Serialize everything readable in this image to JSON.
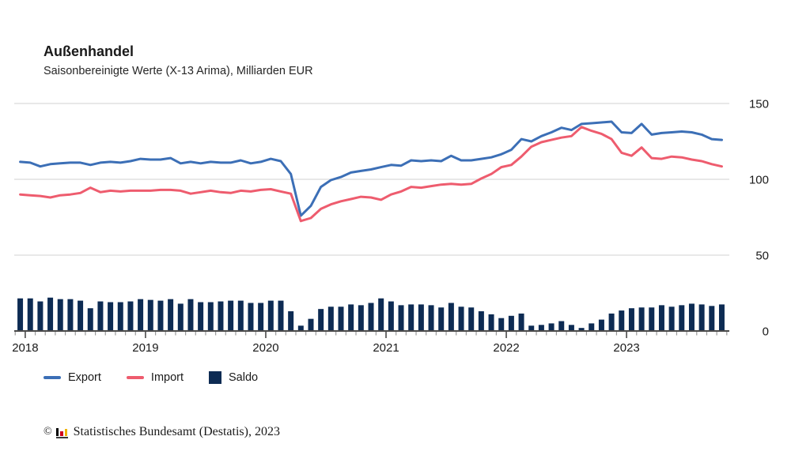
{
  "title": "Außenhandel",
  "subtitle": "Saisonbereinigte Werte (X-13 Arima), Milliarden EUR",
  "footer": {
    "copyright": "©",
    "source": "Statistisches Bundesamt (Destatis), 2023"
  },
  "colors": {
    "export": "#3c6fb6",
    "import": "#ee5c6e",
    "saldo": "#0d2b53",
    "grid": "#d9d9d9",
    "axis": "#4a4a4a",
    "tick_minor": "#9a9a9a",
    "text": "#1a1a1a"
  },
  "legend": [
    {
      "label": "Export",
      "type": "line"
    },
    {
      "label": "Import",
      "type": "line"
    },
    {
      "label": "Saldo",
      "type": "bar"
    }
  ],
  "chart_data": {
    "type": "line+bar",
    "title": "Außenhandel",
    "subtitle": "Saisonbereinigte Werte (X-13 Arima), Milliarden EUR",
    "unit": "Milliarden EUR",
    "x_unit": "month",
    "months": [
      "2017-12",
      "2018-01",
      "2018-02",
      "2018-03",
      "2018-04",
      "2018-05",
      "2018-06",
      "2018-07",
      "2018-08",
      "2018-09",
      "2018-10",
      "2018-11",
      "2018-12",
      "2019-01",
      "2019-02",
      "2019-03",
      "2019-04",
      "2019-05",
      "2019-06",
      "2019-07",
      "2019-08",
      "2019-09",
      "2019-10",
      "2019-11",
      "2019-12",
      "2020-01",
      "2020-02",
      "2020-03",
      "2020-04",
      "2020-05",
      "2020-06",
      "2020-07",
      "2020-08",
      "2020-09",
      "2020-10",
      "2020-11",
      "2020-12",
      "2021-01",
      "2021-02",
      "2021-03",
      "2021-04",
      "2021-05",
      "2021-06",
      "2021-07",
      "2021-08",
      "2021-09",
      "2021-10",
      "2021-11",
      "2021-12",
      "2022-01",
      "2022-02",
      "2022-03",
      "2022-04",
      "2022-05",
      "2022-06",
      "2022-07",
      "2022-08",
      "2022-09",
      "2022-10",
      "2022-11",
      "2022-12",
      "2023-01",
      "2023-02",
      "2023-03",
      "2023-04",
      "2023-05",
      "2023-06",
      "2023-07",
      "2023-08",
      "2023-09",
      "2023-10"
    ],
    "series": [
      {
        "name": "Export",
        "type": "line",
        "values": [
          111.5,
          111,
          108.5,
          110,
          110.5,
          111,
          111,
          109.5,
          111,
          111.5,
          111,
          112,
          113.5,
          113,
          113,
          114,
          110.5,
          111.5,
          110.5,
          111.5,
          111,
          111,
          112.5,
          110.5,
          111.5,
          113.5,
          112,
          103.5,
          76,
          82.5,
          95,
          99.5,
          101.5,
          104.5,
          105.5,
          106.5,
          108,
          109.5,
          109,
          112.5,
          112,
          112.5,
          112,
          115.5,
          112.5,
          112.5,
          113.5,
          114.5,
          116.5,
          119.5,
          126.5,
          125,
          128.5,
          131,
          134,
          132.5,
          136.5,
          137,
          137.5,
          138,
          131,
          130.5,
          136.5,
          129.5,
          130.5,
          131,
          131.5,
          131,
          129.5,
          126.5,
          126
        ]
      },
      {
        "name": "Import",
        "type": "line",
        "values": [
          90,
          89.5,
          89,
          88,
          89.5,
          90,
          91,
          94.5,
          91.5,
          92.5,
          92,
          92.5,
          92.5,
          92.5,
          93,
          93,
          92.5,
          90.5,
          91.5,
          92.5,
          91.5,
          91,
          92.5,
          92,
          93,
          93.5,
          92,
          90.5,
          72.5,
          74.5,
          80.5,
          83.5,
          85.5,
          87,
          88.5,
          88,
          86.5,
          90,
          92,
          95,
          94.5,
          95.5,
          96.5,
          97,
          96.5,
          97,
          100.5,
          103.5,
          108,
          109.5,
          115,
          121.5,
          124.5,
          126,
          127.5,
          128.5,
          134.5,
          132,
          130,
          126.5,
          117.5,
          115.5,
          121,
          114,
          113.5,
          115,
          114.5,
          113,
          112,
          110,
          108.5
        ]
      },
      {
        "name": "Saldo",
        "type": "bar",
        "values": [
          21.5,
          21.5,
          19.5,
          22,
          21,
          21,
          20,
          15,
          19.5,
          19,
          19,
          19.5,
          21,
          20.5,
          20,
          21,
          18,
          21,
          19,
          19,
          19.5,
          20,
          20,
          18.5,
          18.5,
          20,
          20,
          13,
          3.5,
          8,
          14.5,
          16,
          16,
          17.5,
          17,
          18.5,
          21.5,
          19.5,
          17,
          17.5,
          17.5,
          17,
          15.5,
          18.5,
          16,
          15.5,
          13,
          11,
          8.5,
          10,
          11.5,
          3.5,
          4,
          5,
          6.5,
          4,
          2,
          5,
          7.5,
          11.5,
          13.5,
          15,
          15.5,
          15.5,
          17,
          16,
          17,
          18,
          17.5,
          16.5,
          17.5
        ]
      }
    ],
    "x_tick_labels": [
      "2018",
      "2019",
      "2020",
      "2021",
      "2022",
      "2023"
    ],
    "y_ticks": [
      0,
      50,
      100,
      150
    ],
    "y_tick_side": "right",
    "ylim": [
      0,
      155
    ],
    "grid": "horizontal",
    "legend_position": "bottom-left"
  }
}
